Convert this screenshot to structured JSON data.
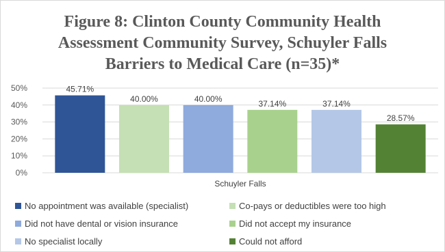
{
  "chart_data": {
    "type": "bar",
    "title_lines": [
      "Figure 8: Clinton County Community Health",
      "Assessment Community Survey, Schuyler Falls",
      "Barriers to Medical Care (n=35)*"
    ],
    "xlabel": "Schuyler Falls",
    "ylabel": "",
    "ylim": [
      0,
      50
    ],
    "y_ticks": [
      "0%",
      "10%",
      "20%",
      "30%",
      "40%",
      "50%"
    ],
    "grid": true,
    "legend_position": "bottom",
    "series": [
      {
        "name": "No appointment was available (specialist)",
        "value": 45.71,
        "label": "45.71%",
        "color": "#2f5597"
      },
      {
        "name": "Co-pays or deductibles were too high",
        "value": 40.0,
        "label": "40.00%",
        "color": "#c5e0b4"
      },
      {
        "name": "Did not have dental or vision insurance",
        "value": 40.0,
        "label": "40.00%",
        "color": "#8faadc"
      },
      {
        "name": "Did not accept my insurance",
        "value": 37.14,
        "label": "37.14%",
        "color": "#a9d18e"
      },
      {
        "name": "No specialist locally",
        "value": 37.14,
        "label": "37.14%",
        "color": "#b4c7e7"
      },
      {
        "name": "Could not afford",
        "value": 28.57,
        "label": "28.57%",
        "color": "#548235"
      }
    ]
  }
}
